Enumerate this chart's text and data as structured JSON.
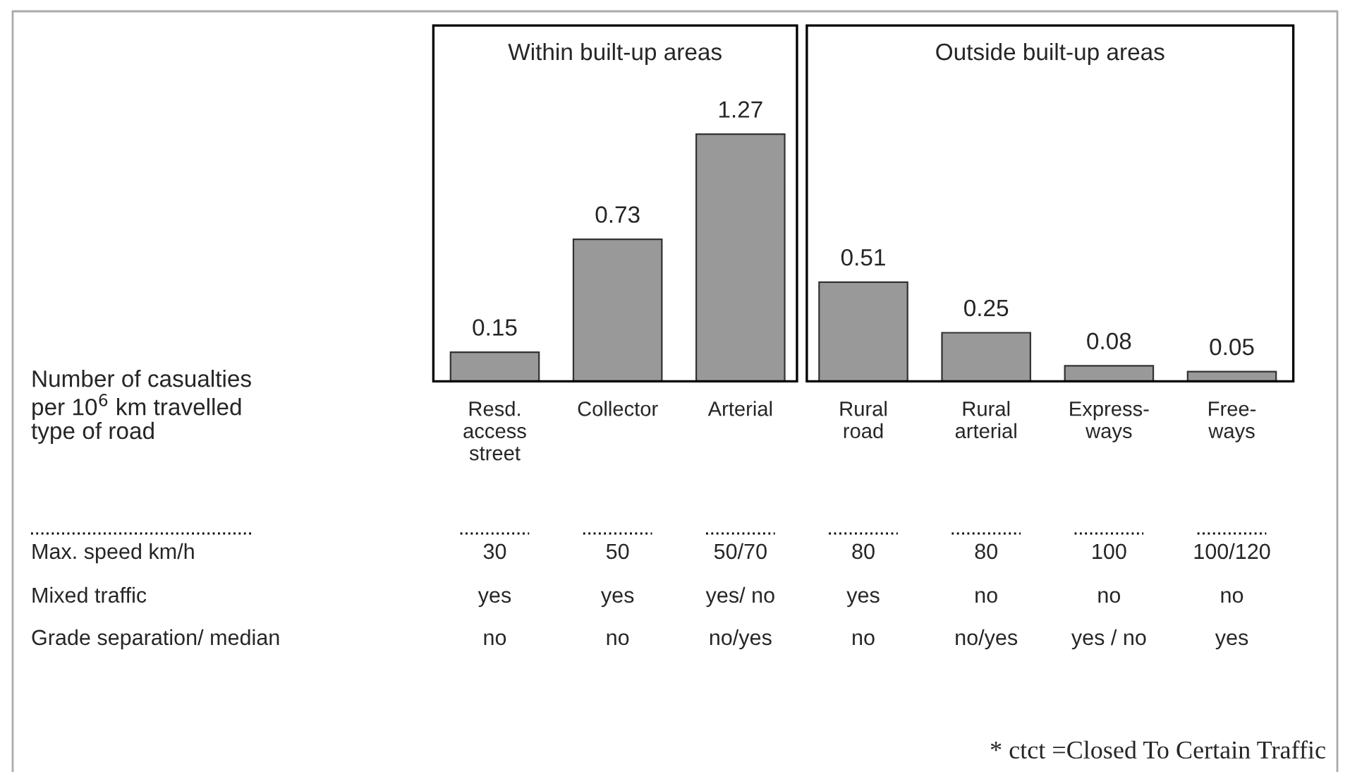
{
  "chart_data": {
    "type": "bar",
    "categories": [
      "Resd.\naccess\nstreet",
      "Collector",
      "Arterial",
      "Rural\nroad",
      "Rural\narterial",
      "Express-\nways",
      "Free-\nways"
    ],
    "values": [
      0.15,
      0.73,
      1.27,
      0.51,
      0.25,
      0.08,
      0.05
    ],
    "color": "#999999",
    "data_labels": true,
    "grid": false,
    "legend": false,
    "tick_labels": "x",
    "annotations": [
      "Within built-up areas",
      "Outside built-up areas",
      "Number of casualties\nper 10$^{6}$ km travelled\ntype of road",
      "Max. speed km/h",
      "30",
      "50",
      "50/70",
      "80",
      "80",
      "100",
      "100/120",
      "Mixed traffic",
      "yes",
      "yes",
      "yes/ no",
      "yes",
      "no",
      "no",
      "no",
      "Grade separation/ median",
      "no",
      "no",
      "no/yes",
      "no",
      "no/yes",
      "yes / no",
      "yes",
      "* ctct =Closed To Certain Traffic"
    ]
  }
}
